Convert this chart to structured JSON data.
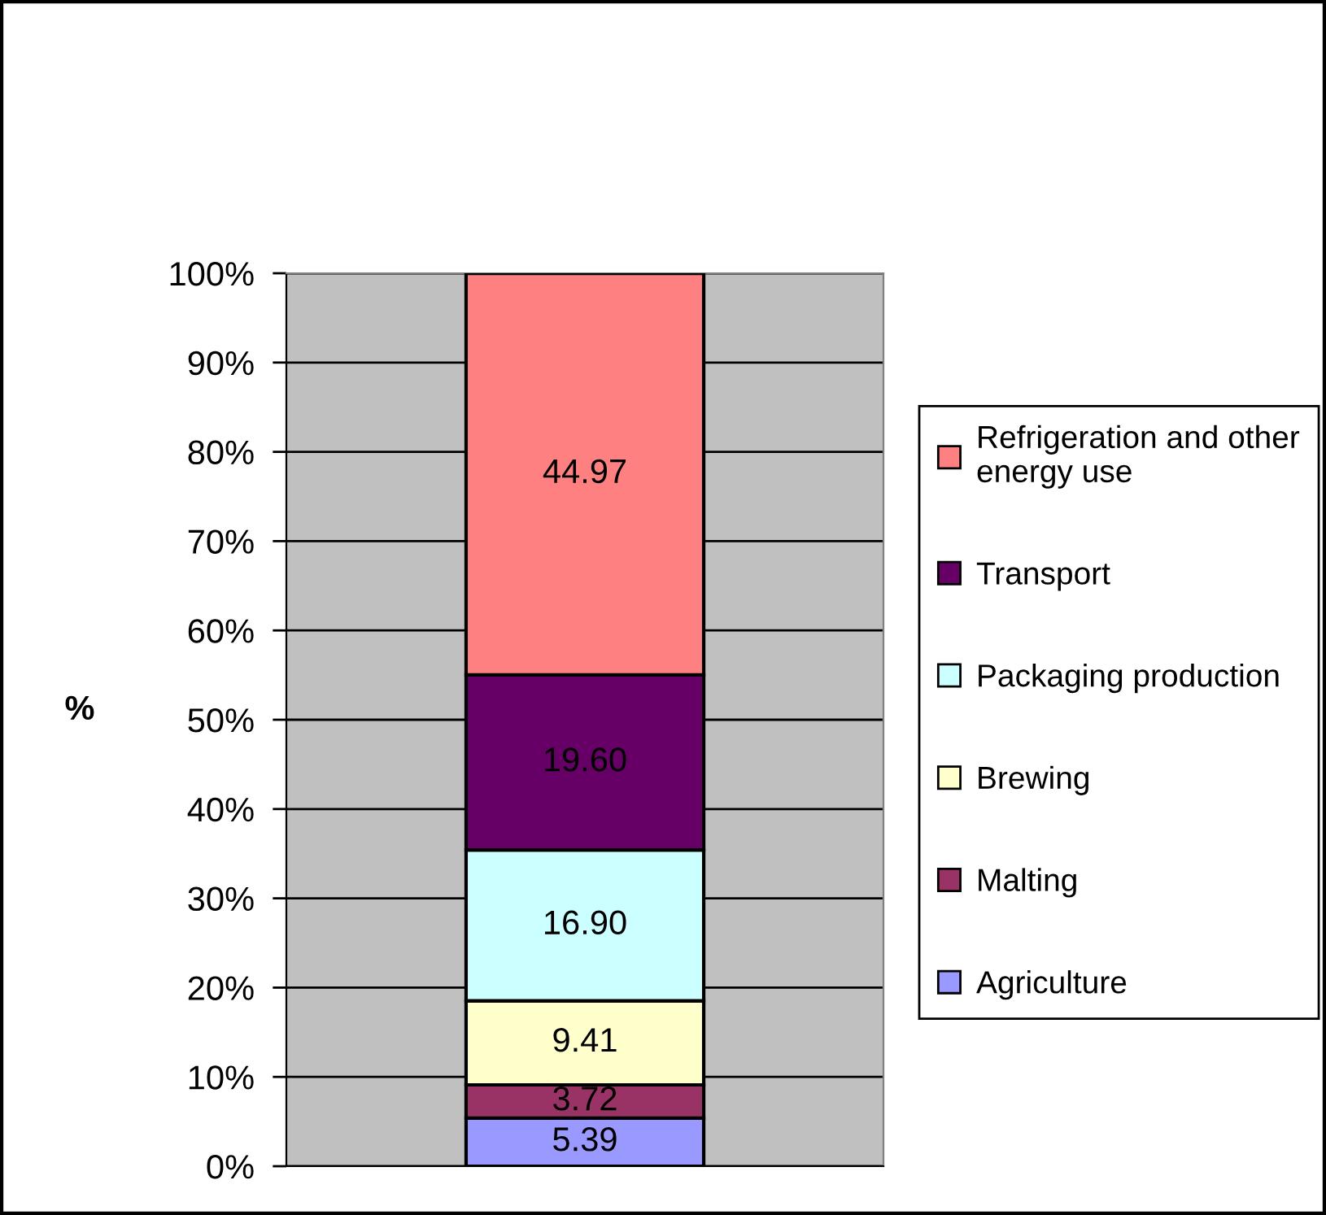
{
  "chart_data": {
    "type": "bar",
    "stacked": true,
    "categories": [
      null
    ],
    "ylabel": "%",
    "ylim": [
      0,
      100
    ],
    "yticks": [
      {
        "value": 0,
        "label": "0%"
      },
      {
        "value": 10,
        "label": "10%"
      },
      {
        "value": 20,
        "label": "20%"
      },
      {
        "value": 30,
        "label": "30%"
      },
      {
        "value": 40,
        "label": "40%"
      },
      {
        "value": 50,
        "label": "50%"
      },
      {
        "value": 60,
        "label": "60%"
      },
      {
        "value": 70,
        "label": "70%"
      },
      {
        "value": 80,
        "label": "80%"
      },
      {
        "value": 90,
        "label": "90%"
      },
      {
        "value": 100,
        "label": "100%"
      }
    ],
    "series": [
      {
        "name": "Agriculture",
        "color": "#9999ff",
        "values": [
          5.39
        ],
        "value_labels": [
          "5.39"
        ]
      },
      {
        "name": "Malting",
        "color": "#993366",
        "values": [
          3.72
        ],
        "value_labels": [
          "3.72"
        ]
      },
      {
        "name": "Brewing",
        "color": "#ffffcc",
        "values": [
          9.41
        ],
        "value_labels": [
          "9.41"
        ]
      },
      {
        "name": "Packaging production",
        "color": "#ccffff",
        "values": [
          16.9
        ],
        "value_labels": [
          "16.90"
        ]
      },
      {
        "name": "Transport",
        "color": "#660066",
        "values": [
          19.6
        ],
        "value_labels": [
          "19.60"
        ]
      },
      {
        "name": "Refrigeration and other\nenergy use",
        "color": "#ff8080",
        "values": [
          44.97
        ],
        "value_labels": [
          "44.97"
        ]
      }
    ],
    "grid": "y",
    "legend": "right"
  }
}
